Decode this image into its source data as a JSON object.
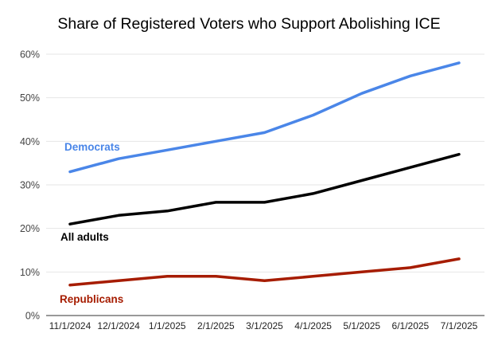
{
  "chart_data": {
    "type": "line",
    "title": "Share of Registered Voters who Support Abolishing ICE",
    "xlabel": "",
    "ylabel": "",
    "x": [
      "11/1/2024",
      "12/1/2024",
      "1/1/2025",
      "2/1/2025",
      "3/1/2025",
      "4/1/2025",
      "5/1/2025",
      "6/1/2025",
      "7/1/2025"
    ],
    "ylim": [
      0,
      60
    ],
    "yticks": [
      "0%",
      "10%",
      "20%",
      "30%",
      "40%",
      "50%",
      "60%"
    ],
    "grid": true,
    "legend": "inline labels",
    "series": [
      {
        "name": "Democrats",
        "color": "#4a86e8",
        "values": [
          33,
          36,
          38,
          40,
          42,
          46,
          51,
          55,
          58
        ]
      },
      {
        "name": "All adults",
        "color": "#000000",
        "values": [
          21,
          23,
          24,
          26,
          26,
          28,
          31,
          34,
          37
        ]
      },
      {
        "name": "Republicans",
        "color": "#a61c00",
        "values": [
          7,
          8,
          9,
          9,
          8,
          9,
          10,
          11,
          13
        ]
      }
    ]
  }
}
